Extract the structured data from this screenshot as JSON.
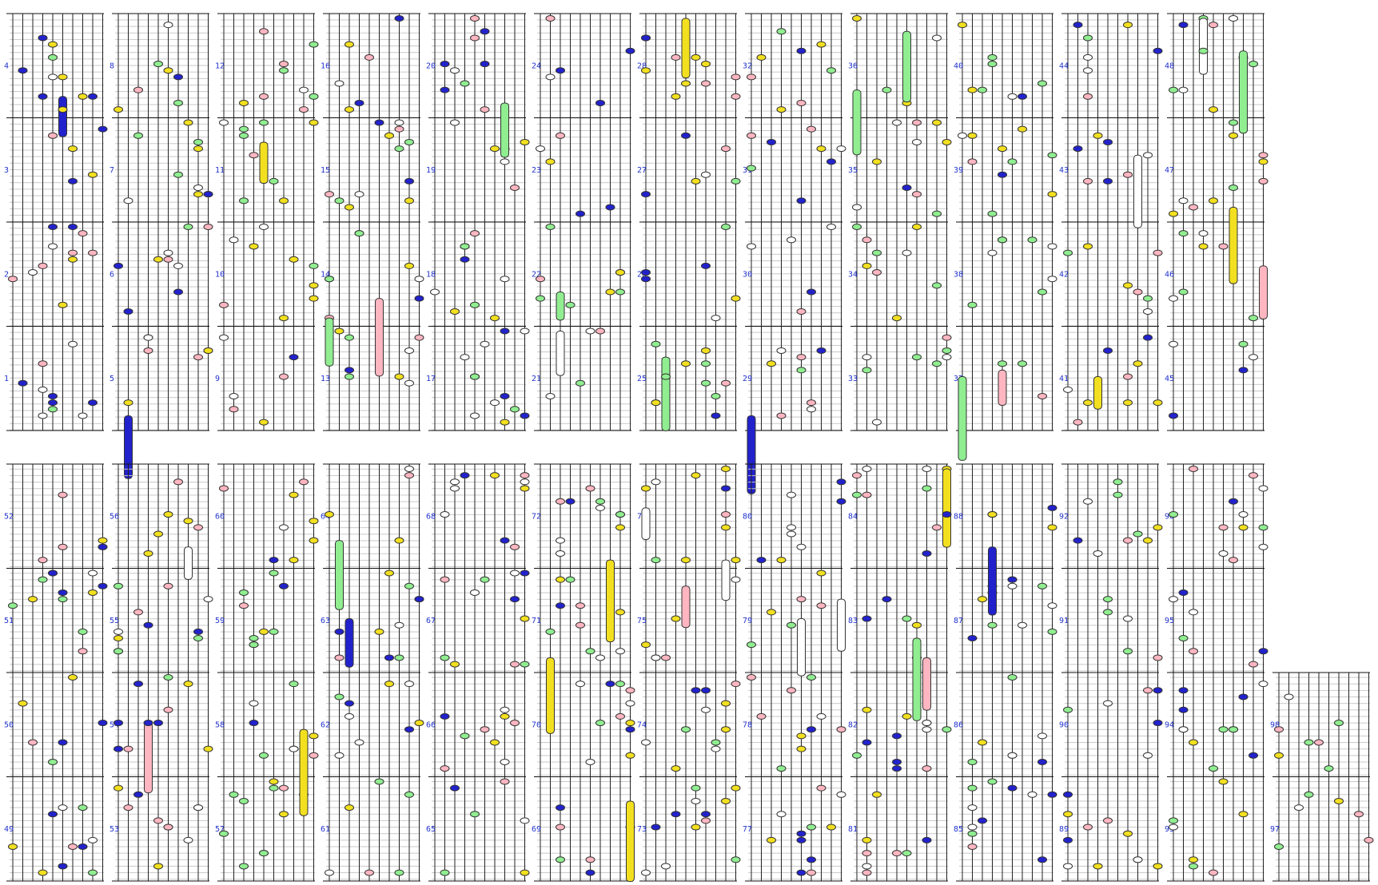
{
  "measure_labels": [
    "1",
    "2",
    "3",
    "4",
    "5",
    "6",
    "7",
    "8",
    "9",
    "10",
    "11",
    "12",
    "13",
    "14",
    "15",
    "16",
    "17",
    "18",
    "19",
    "20",
    "21",
    "22",
    "23",
    "24",
    "25",
    "26",
    "27",
    "28",
    "29",
    "30",
    "31",
    "32",
    "33",
    "34",
    "35",
    "36",
    "37",
    "38",
    "39",
    "40",
    "41",
    "42",
    "43",
    "44",
    "45",
    "46",
    "47",
    "48",
    "49",
    "50",
    "51",
    "52",
    "53",
    "54",
    "55",
    "56",
    "57",
    "58",
    "59",
    "60",
    "61",
    "62",
    "63",
    "64",
    "65",
    "66",
    "67",
    "68",
    "69",
    "70",
    "71",
    "72",
    "73",
    "74",
    "75",
    "76",
    "77",
    "78",
    "79",
    "80",
    "81",
    "82",
    "83",
    "84",
    "85",
    "86",
    "87",
    "88",
    "89",
    "90",
    "91",
    "92",
    "93",
    "94",
    "95",
    "96",
    "97",
    "98"
  ]
}
